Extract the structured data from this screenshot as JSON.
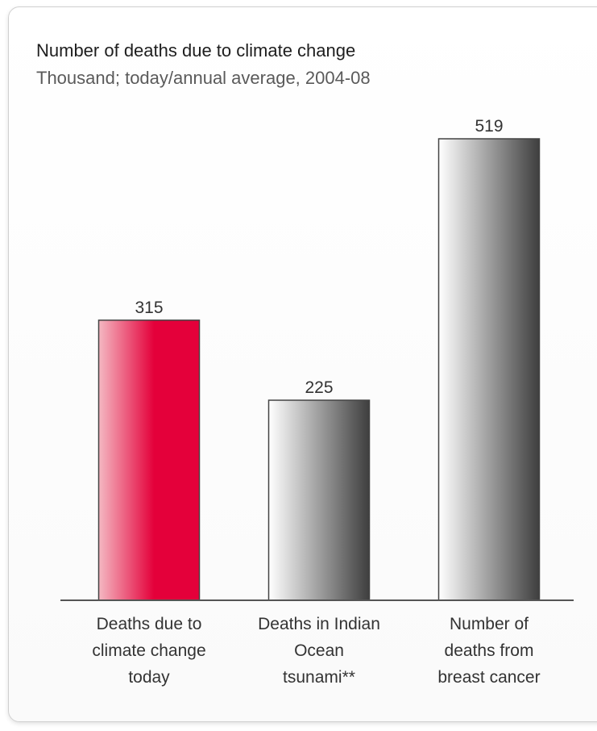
{
  "chart_data": {
    "type": "bar",
    "title": "Number of deaths due to climate change",
    "subtitle": "Thousand; today/annual average, 2004-08",
    "xlabel": "",
    "ylabel": "",
    "ylim": [
      0,
      519
    ],
    "grid": false,
    "categories": [
      "Deaths due to climate change today",
      "Deaths in Indian Ocean tsunami**",
      "Number of deaths from breast cancer"
    ],
    "category_lines": [
      [
        "Deaths due to",
        "climate change",
        "today"
      ],
      [
        "Deaths in Indian",
        "Ocean",
        "tsunami**"
      ],
      [
        "Number of",
        "deaths from",
        "breast cancer"
      ]
    ],
    "values": [
      315,
      225,
      519
    ],
    "value_labels": [
      "315",
      "225",
      "519"
    ],
    "bar_styles": [
      "red",
      "grey",
      "grey"
    ]
  },
  "colors": {
    "red_light": "#f4b8c2",
    "red_dark": "#e4003a",
    "grey_light": "#ffffff",
    "grey_dark": "#3e3e3e",
    "axis": "#555555",
    "text": "#333333"
  }
}
